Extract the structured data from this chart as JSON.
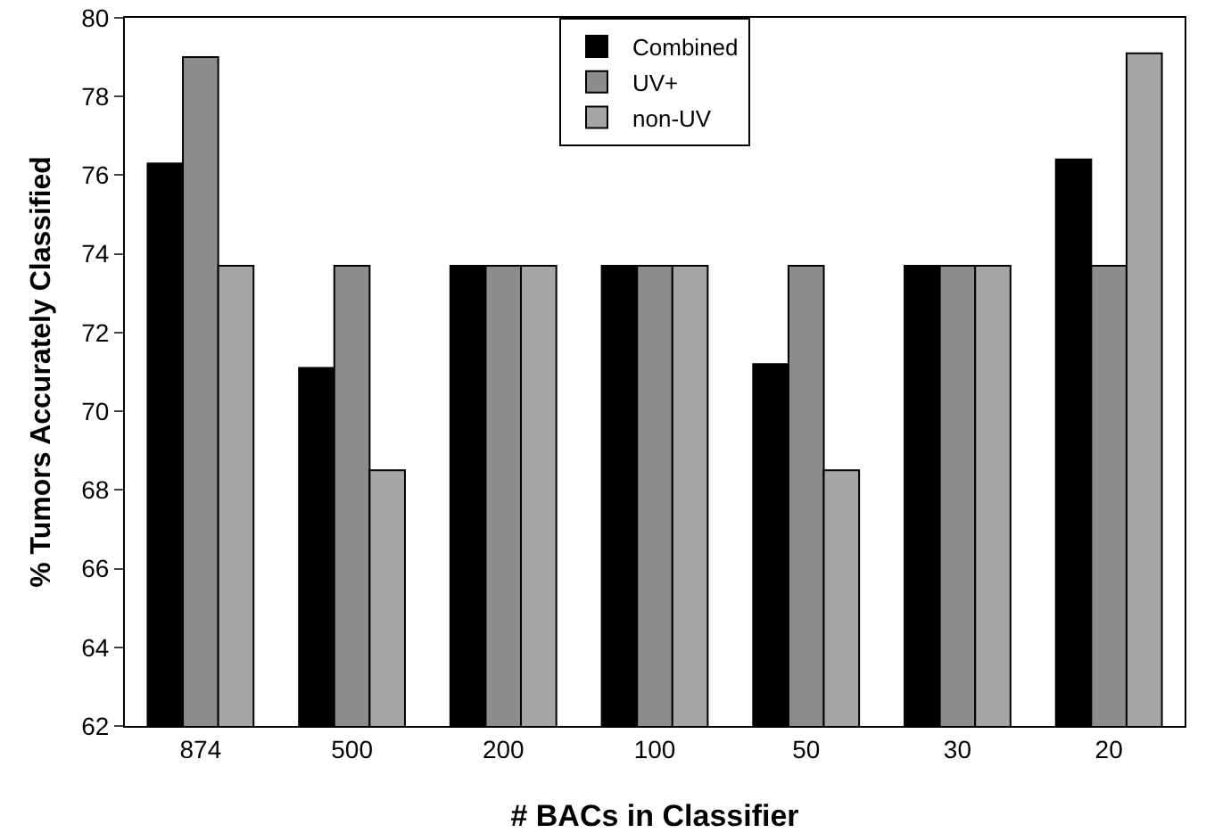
{
  "chart_data": {
    "type": "bar",
    "xlabel": "# BACs in Classifier",
    "ylabel": "% Tumors Accurately Classified",
    "categories": [
      "874",
      "500",
      "200",
      "100",
      "50",
      "30",
      "20"
    ],
    "series": [
      {
        "name": "Combined",
        "color": "#000000",
        "values": [
          76.3,
          71.1,
          73.7,
          73.7,
          71.2,
          73.7,
          76.4
        ]
      },
      {
        "name": "UV+",
        "color": "#8c8c8c",
        "values": [
          79.0,
          73.7,
          73.7,
          73.7,
          73.7,
          73.7,
          73.7
        ]
      },
      {
        "name": "non-UV",
        "color": "#a6a6a6",
        "values": [
          73.7,
          68.5,
          73.7,
          73.7,
          68.5,
          73.7,
          79.1
        ]
      }
    ],
    "ylim": [
      62,
      80
    ],
    "yticks": [
      62,
      64,
      66,
      68,
      70,
      72,
      74,
      76,
      78,
      80
    ],
    "grid": false,
    "legend": "top"
  }
}
